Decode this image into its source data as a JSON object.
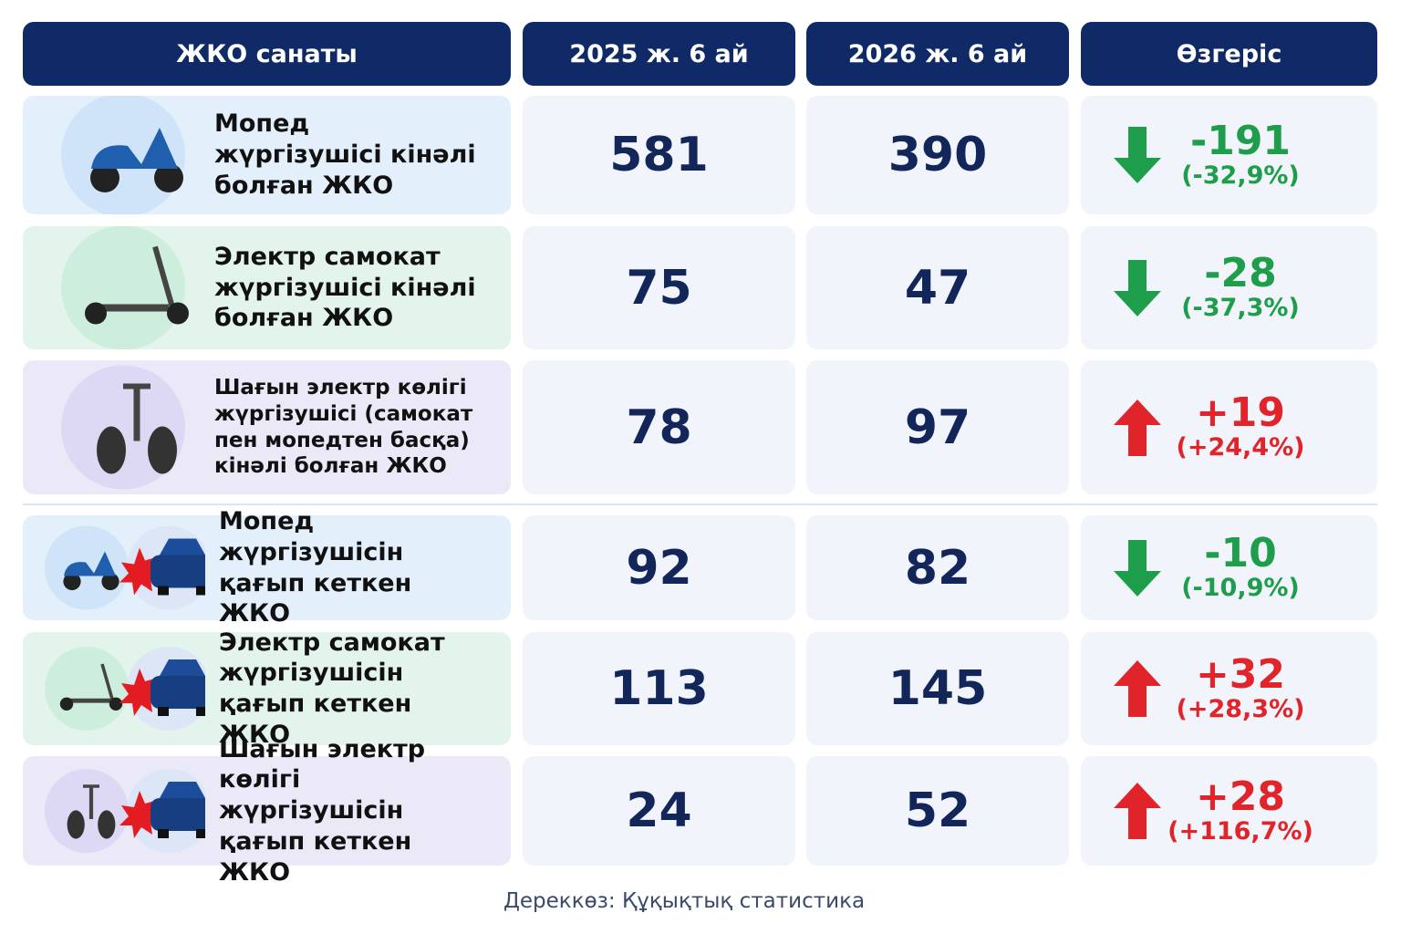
{
  "header": {
    "columns": [
      "ЖКО санаты",
      "2025 ж. 6 ай",
      "2026 ж. 6 ай",
      "Өзгеріс"
    ]
  },
  "rows": [
    {
      "label": "Мопед жүргізушісі кінәлі болған ЖКО",
      "y2025": 581,
      "y2026": 390,
      "change": "-191",
      "change_pct": "(-32,9%)"
    },
    {
      "label": "Электр самокат жүргізушісі кінәлі болған ЖКО",
      "y2025": 75,
      "y2026": 47,
      "change": "-28",
      "change_pct": "(-37,3%)"
    },
    {
      "label": "Шағын электр көлігі жүргізушісі (самокат пен мопедтен басқа) кінәлі болған ЖКО",
      "y2025": 78,
      "y2026": 97,
      "change": "+19",
      "change_pct": "(+24,4%)"
    },
    {
      "label": "Мопед жүргізушісін қағып кеткен ЖКО",
      "y2025": 92,
      "y2026": 82,
      "change": "-10",
      "change_pct": "(-10,9%)"
    },
    {
      "label": "Электр самокат жүргізушісін қағып кеткен ЖКО",
      "y2025": 113,
      "y2026": 145,
      "change": "+32",
      "change_pct": "(+28,3%)"
    },
    {
      "label": "Шағын электр көлігі жүргізушісін қағып кеткен ЖКО",
      "y2025": 24,
      "y2026": 52,
      "change": "+28",
      "change_pct": "(+116,7%)"
    }
  ],
  "source": "Дереккөз: Құқықтық статистика"
}
